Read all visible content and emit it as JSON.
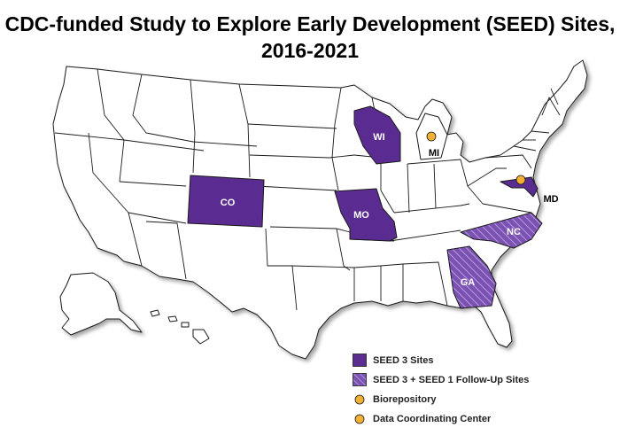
{
  "title": {
    "line1": "CDC-funded Study to Explore Early Development (SEED) Sites,",
    "line2": "2016-2021"
  },
  "colors": {
    "seed3": "#5a2c91",
    "hatch_bg": "#7b52b3",
    "state_fill": "#ffffff",
    "state_stroke": "#1a1a1a",
    "dot": "#f2b134"
  },
  "states": {
    "co": "CO",
    "wi": "WI",
    "mo": "MO",
    "mi": "MI",
    "md": "MD",
    "nc": "NC",
    "ga": "GA"
  },
  "legend": {
    "seed3": "SEED 3 Sites",
    "followup": "SEED 3 + SEED 1 Follow-Up Sites",
    "biorepository": "Biorepository",
    "data_center": "Data Coordinating Center"
  }
}
